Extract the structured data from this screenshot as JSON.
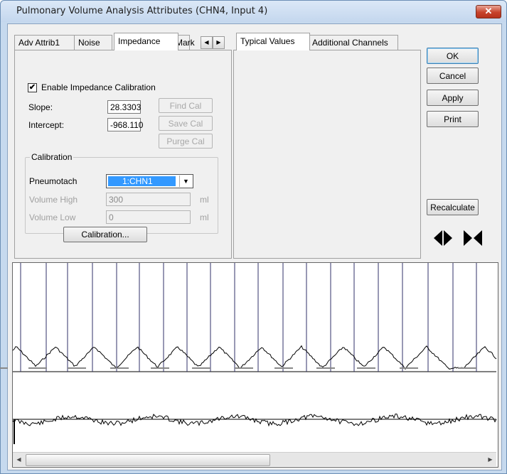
{
  "window": {
    "title": "Pulmonary Volume Analysis Attributes  (CHN4, Input 4)",
    "close_label": "✕"
  },
  "left_tabs": {
    "items": [
      "Adv Attrib1",
      "Noise",
      "Impedance",
      "Mark"
    ],
    "active": "Impedance",
    "scroll_left": "◀",
    "scroll_right": "▶"
  },
  "impedance": {
    "enable_label": "Enable Impedance Calibration",
    "enable_checked": "✔",
    "slope_label": "Slope:",
    "slope_value": "28.3303",
    "intercept_label": "Intercept:",
    "intercept_value": "-968.110",
    "find_cal": "Find Cal",
    "save_cal": "Save Cal",
    "purge_cal": "Purge Cal"
  },
  "calibration": {
    "group_title": "Calibration",
    "pneumotach_label": "Pneumotach",
    "pneumotach_value": "1:CHN1",
    "volume_high_label": "Volume High",
    "volume_high_value": "300",
    "volume_high_unit": "ml",
    "volume_low_label": "Volume Low",
    "volume_low_value": "0",
    "volume_low_unit": "ml",
    "calibration_button": "Calibration..."
  },
  "mid_tabs": {
    "items": [
      "Typical Values",
      "Additional Channels"
    ],
    "active": "Typical Values"
  },
  "buttons": {
    "ok": "OK",
    "cancel": "Cancel",
    "apply": "Apply",
    "print": "Print",
    "recalculate": "Recalculate"
  },
  "icons": {
    "expand": "expand-horizontal-icon",
    "compress": "compress-horizontal-icon"
  },
  "scrollbar": {
    "left_arrow": "◀",
    "right_arrow": "▶",
    "thumb_position": 0.0,
    "thumb_size": 0.5
  }
}
